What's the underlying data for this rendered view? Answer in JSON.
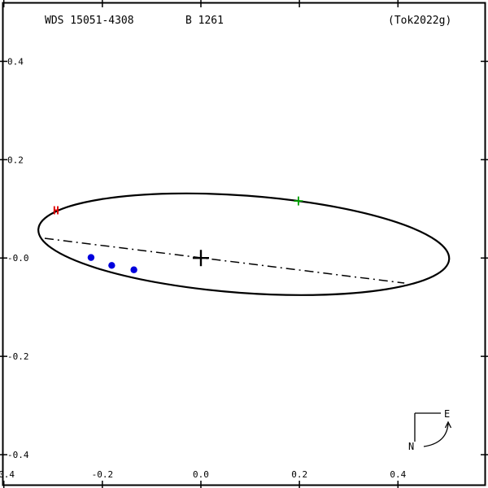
{
  "header": {
    "wds_id": "WDS 15051-4308",
    "pair_name": "B 1261",
    "reference": "(Tok2022g)"
  },
  "colors": {
    "background": "#ffffff",
    "frame": "#000000",
    "orbit": "#000000",
    "line_of_nodes": "#000000",
    "primary_cross": "#000000",
    "measurement": "#0000dd",
    "hipparcos": "#dd0000",
    "ephemeris": "#00a000",
    "text": "#000000"
  },
  "chart_data": {
    "type": "scatter",
    "subtype": "binary-star-orbit-plot",
    "title": "WDS 15051-4308  B 1261  (Tok2022g)",
    "grid": false,
    "axes_unit": "arcsec",
    "x_axis": {
      "range": [
        -0.402,
        0.577
      ],
      "ticks": [
        {
          "value": -0.4,
          "label": "-0.4"
        },
        {
          "value": -0.2,
          "label": "-0.2"
        },
        {
          "value": 0.0,
          "label": "0.0"
        },
        {
          "value": 0.2,
          "label": "0.2"
        },
        {
          "value": 0.4,
          "label": "0.4"
        }
      ]
    },
    "y_axis": {
      "range": [
        -0.462,
        0.519
      ],
      "ticks": [
        {
          "value": 0.4,
          "label": "0.4"
        },
        {
          "value": 0.2,
          "label": "0.2"
        },
        {
          "value": 0.0,
          "label": "-0.0"
        },
        {
          "value": -0.2,
          "label": "-0.2"
        },
        {
          "value": -0.4,
          "label": "-0.4"
        }
      ]
    },
    "orbit_ellipse": {
      "cx": 0.087,
      "cy": 0.028,
      "rx": 0.418,
      "ry": 0.099,
      "rotation_deg_screen": 4.2
    },
    "line_of_nodes": {
      "x1": -0.317,
      "y1": 0.04,
      "x2": 0.413,
      "y2": -0.051
    },
    "primary_star": {
      "x": 0.0,
      "y": 0.0
    },
    "measurements": [
      {
        "x": -0.223,
        "y": 0.001
      },
      {
        "x": -0.181,
        "y": -0.015
      },
      {
        "x": -0.136,
        "y": -0.024
      }
    ],
    "hipparcos_point": {
      "x": -0.294,
      "y": 0.096,
      "label": "H"
    },
    "ephemeris_marker": {
      "x": 0.198,
      "y": 0.116
    },
    "compass": {
      "north_label": "N",
      "east_label": "E"
    }
  }
}
